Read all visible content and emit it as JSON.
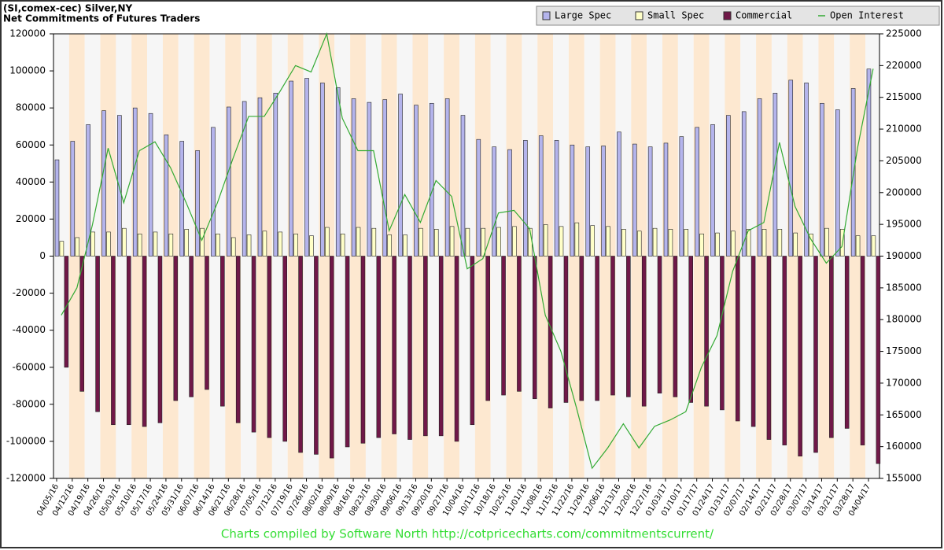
{
  "chart_data": {
    "type": "bar",
    "title": "(SI,comex-cec) Silver,NY",
    "subtitle": "Net Commitments of Futures Traders",
    "footer": "Charts compiled by Software North  http://cotpricecharts.com/commitmentscurrent/",
    "categories": [
      "04/05/16",
      "04/12/16",
      "04/19/16",
      "04/26/16",
      "05/03/16",
      "05/10/16",
      "05/17/16",
      "05/24/16",
      "05/31/16",
      "06/07/16",
      "06/14/16",
      "06/21/16",
      "06/28/16",
      "07/05/16",
      "07/12/16",
      "07/19/16",
      "07/26/16",
      "08/02/16",
      "08/09/16",
      "08/16/16",
      "08/23/16",
      "08/30/16",
      "09/06/16",
      "09/13/16",
      "09/20/16",
      "09/27/16",
      "10/04/16",
      "10/11/16",
      "10/18/16",
      "10/25/16",
      "11/01/16",
      "11/08/16",
      "11/15/16",
      "11/22/16",
      "11/29/16",
      "12/06/16",
      "12/13/16",
      "12/20/16",
      "12/27/16",
      "01/03/17",
      "01/10/17",
      "01/17/17",
      "01/24/17",
      "01/31/17",
      "02/07/17",
      "02/14/17",
      "02/21/17",
      "02/28/17",
      "03/07/17",
      "03/14/17",
      "03/21/17",
      "03/28/17",
      "04/04/17"
    ],
    "series": [
      {
        "name": "Large Spec",
        "color": "#b4b4ec",
        "values": [
          52000,
          62000,
          71000,
          78500,
          76000,
          80000,
          77000,
          65500,
          62000,
          57000,
          69500,
          80500,
          83500,
          85500,
          88000,
          94500,
          96000,
          93500,
          91000,
          85000,
          83000,
          84500,
          87500,
          81500,
          82500,
          85000,
          76000,
          63000,
          59000,
          57500,
          62500,
          65000,
          62500,
          60000,
          59000,
          59500,
          67000,
          60500,
          59000,
          61000,
          64500,
          69500,
          71000,
          76000,
          78000,
          85000,
          88000,
          95000,
          93500,
          82500,
          79000,
          90500,
          101000
        ]
      },
      {
        "name": "Small Spec",
        "color": "#ffffc8",
        "values": [
          8000,
          10000,
          13000,
          13000,
          15000,
          12000,
          13000,
          12000,
          14500,
          15000,
          12000,
          10000,
          11500,
          13500,
          13000,
          12000,
          11000,
          15500,
          12000,
          15500,
          15000,
          11500,
          11500,
          15000,
          14500,
          16000,
          15000,
          15000,
          15500,
          16000,
          15000,
          17000,
          16000,
          18000,
          16500,
          16000,
          14500,
          13500,
          15000,
          14500,
          14500,
          12000,
          12500,
          13500,
          14500,
          14500,
          14500,
          12500,
          12000,
          15000,
          14500,
          11000,
          11000
        ]
      },
      {
        "name": "Commercial",
        "color": "#701848",
        "values": [
          -60000,
          -73000,
          -84000,
          -91000,
          -91000,
          -92000,
          -90000,
          -78000,
          -76000,
          -72000,
          -81000,
          -90000,
          -95000,
          -98000,
          -100000,
          -106000,
          -107000,
          -109000,
          -103000,
          -101000,
          -98000,
          -96000,
          -99000,
          -97000,
          -97000,
          -100000,
          -91000,
          -78000,
          -75000,
          -73000,
          -77000,
          -82000,
          -79000,
          -78000,
          -78000,
          -75000,
          -76000,
          -81000,
          -74000,
          -76000,
          -79000,
          -81000,
          -83000,
          -89000,
          -92000,
          -99000,
          -102000,
          -108000,
          -106000,
          -98000,
          -93000,
          -102000,
          -112000
        ]
      },
      {
        "name": "Open Interest",
        "color": "#33aa33",
        "type": "line",
        "axis": "y2",
        "values": [
          180700,
          185000,
          195000,
          207000,
          198400,
          206600,
          208000,
          203900,
          198400,
          192500,
          198400,
          205400,
          212000,
          212000,
          215900,
          220000,
          219000,
          225000,
          211700,
          206600,
          206600,
          194000,
          199700,
          195300,
          201900,
          199400,
          188000,
          189600,
          196800,
          197200,
          194300,
          180700,
          175000,
          166100,
          156600,
          159800,
          163600,
          159800,
          163200,
          164200,
          165500,
          172500,
          177500,
          187600,
          194000,
          195300,
          207900,
          197800,
          192700,
          188900,
          191500,
          207000,
          219500
        ]
      }
    ],
    "ylim": [
      -120000,
      120000
    ],
    "yticks": [
      -120000,
      -100000,
      -80000,
      -60000,
      -40000,
      -20000,
      0,
      20000,
      40000,
      60000,
      80000,
      100000,
      120000
    ],
    "y2lim": [
      155000,
      225000
    ],
    "y2ticks": [
      155000,
      160000,
      165000,
      170000,
      175000,
      180000,
      185000,
      190000,
      195000,
      200000,
      205000,
      210000,
      215000,
      220000,
      225000
    ],
    "legend": "top-right"
  }
}
